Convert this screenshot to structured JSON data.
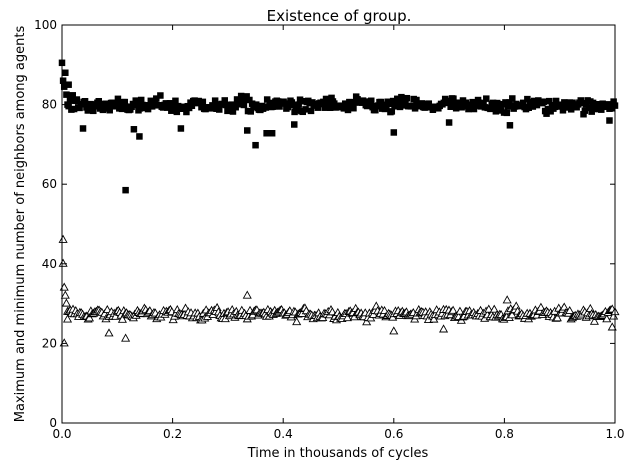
{
  "chart_data": {
    "type": "scatter",
    "title": "Existence of group.",
    "xlabel": "Time in thousands of cycles",
    "ylabel": "Maximum and minimum number of neighbors among agents",
    "xlim": [
      0.0,
      1.0
    ],
    "ylim": [
      0,
      100
    ],
    "x_ticks": [
      "0.0",
      "0.2",
      "0.4",
      "0.6",
      "0.8",
      "1.0"
    ],
    "y_ticks": [
      "0",
      "20",
      "40",
      "60",
      "80",
      "100"
    ],
    "grid": false,
    "legend": "none",
    "series": [
      {
        "marker": "filled-square",
        "color": "#000000",
        "points_per_series": 400,
        "pattern": "dense band fluctuating around ~80 (range ~76–84), starting near 85–90 at x=0",
        "points": [
          [
            0.0,
            90.5
          ],
          [
            0.002,
            86.0
          ],
          [
            0.004,
            84.5
          ],
          [
            0.006,
            88.0
          ],
          [
            0.008,
            82.5
          ],
          [
            0.01,
            80.0
          ],
          [
            0.012,
            85.0
          ],
          [
            0.015,
            81.0
          ],
          [
            0.038,
            74.0
          ],
          [
            0.115,
            58.5
          ],
          [
            0.13,
            73.8
          ],
          [
            0.14,
            72.0
          ],
          [
            0.215,
            74.0
          ],
          [
            0.335,
            73.5
          ],
          [
            0.35,
            69.8
          ],
          [
            0.37,
            72.8
          ],
          [
            0.38,
            72.8
          ],
          [
            0.42,
            75.0
          ],
          [
            0.6,
            73.0
          ],
          [
            0.7,
            75.5
          ],
          [
            0.81,
            74.8
          ],
          [
            0.99,
            76.0
          ]
        ]
      },
      {
        "marker": "open-triangle",
        "color": "#000000",
        "points_per_series": 400,
        "pattern": "dense band fluctuating around ~27 (range ~24–31), with early spikes near x=0",
        "points": [
          [
            0.002,
            46.0
          ],
          [
            0.002,
            40.0
          ],
          [
            0.004,
            34.0
          ],
          [
            0.004,
            20.0
          ],
          [
            0.006,
            32.0
          ],
          [
            0.008,
            30.0
          ],
          [
            0.01,
            26.0
          ],
          [
            0.085,
            22.5
          ],
          [
            0.115,
            21.2
          ],
          [
            0.335,
            32.0
          ],
          [
            0.6,
            23.0
          ],
          [
            0.69,
            23.5
          ],
          [
            0.805,
            30.8
          ],
          [
            0.995,
            24.0
          ]
        ]
      }
    ]
  }
}
